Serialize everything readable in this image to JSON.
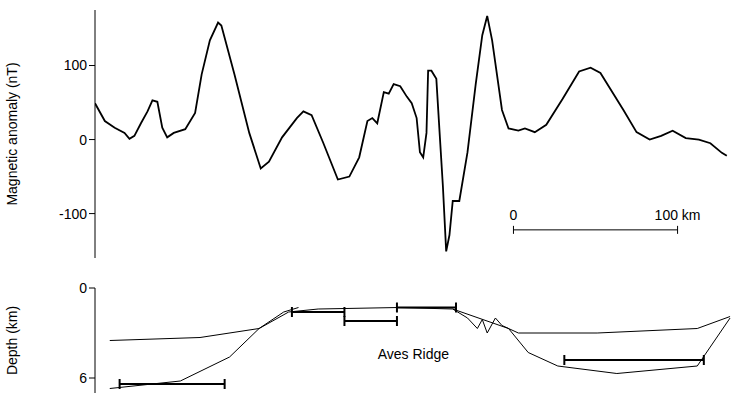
{
  "chart_data": [
    {
      "type": "line",
      "y_label": "Magnetic anomaly (nT)",
      "xlim": [
        0,
        390
      ],
      "ylim": [
        -160,
        175
      ],
      "yticks": [
        -100,
        0,
        100
      ],
      "tick_labels": "y",
      "color": "#000000",
      "x": [
        0,
        6,
        12,
        18,
        21,
        24,
        28,
        32,
        35,
        38,
        41,
        44,
        48,
        55,
        61,
        65,
        70,
        75,
        77,
        85,
        94,
        101,
        106,
        114,
        123,
        127,
        132,
        139,
        148,
        155,
        161,
        166,
        169,
        172,
        176,
        179,
        182,
        186,
        190,
        193,
        196,
        198,
        200,
        202,
        203,
        205,
        208,
        210,
        212,
        214,
        216,
        218,
        222,
        227,
        232,
        236,
        239,
        242,
        248,
        252,
        258,
        262,
        268,
        275,
        285,
        295,
        302,
        308,
        315,
        322,
        330,
        338,
        345,
        352,
        360,
        368,
        375,
        382,
        385
      ],
      "values": [
        49,
        25,
        16,
        9,
        1,
        5,
        22,
        38,
        53,
        51,
        16,
        3,
        9,
        14,
        36,
        88,
        134,
        158,
        154,
        88,
        9,
        -39,
        -30,
        3,
        29,
        38,
        33,
        -4,
        -54,
        -50,
        -24,
        25,
        29,
        22,
        64,
        62,
        75,
        72,
        58,
        49,
        29,
        -17,
        -24,
        9,
        93,
        93,
        82,
        9,
        -63,
        -151,
        -129,
        -83,
        -83,
        -17,
        75,
        141,
        167,
        134,
        40,
        15,
        12,
        15,
        10,
        20,
        55,
        92,
        97,
        90,
        65,
        40,
        10,
        0,
        5,
        12,
        2,
        0,
        -5,
        -18,
        -22
      ],
      "scale_bar": {
        "labels": [
          "0",
          "100 km"
        ],
        "x": [
          255,
          355
        ],
        "y": -122
      }
    },
    {
      "type": "line",
      "y_label": "Depth (km)",
      "xlim": [
        0,
        390
      ],
      "ylim": [
        0,
        7
      ],
      "yticks": [
        0,
        6
      ],
      "tick_labels": "y",
      "series": [
        {
          "color": "#000000",
          "x": [
            9,
            64,
            100,
            118,
            136,
            185,
            218,
            227,
            233,
            236,
            239,
            244,
            248,
            258,
            306,
            367,
            387
          ],
          "values": [
            3.5,
            3.3,
            2.7,
            1.6,
            1.4,
            1.3,
            1.4,
            2.0,
            2.7,
            2.1,
            3.0,
            2.0,
            2.5,
            3.0,
            3.0,
            2.7,
            1.9
          ]
        },
        {
          "color": "#000000",
          "x": [
            9,
            52,
            82,
            100,
            115,
            124,
            170,
            218,
            252,
            264,
            282,
            318,
            367,
            387
          ],
          "values": [
            6.7,
            6.2,
            4.6,
            2.7,
            1.6,
            1.3,
            null,
            1.4,
            2.7,
            4.3,
            5.2,
            5.7,
            5.2,
            2.0
          ]
        }
      ],
      "intervals": [
        {
          "x": [
            15,
            79
          ],
          "y": 6.4
        },
        {
          "x": [
            120,
            152
          ],
          "y": 1.6
        },
        {
          "x": [
            152,
            184
          ],
          "y": 2.2
        },
        {
          "x": [
            184,
            220
          ],
          "y": 1.3
        },
        {
          "x": [
            286,
            371
          ],
          "y": 4.8
        }
      ],
      "annotations": [
        {
          "text": "Aves Ridge",
          "x": 194,
          "y": 4.4
        }
      ]
    }
  ]
}
